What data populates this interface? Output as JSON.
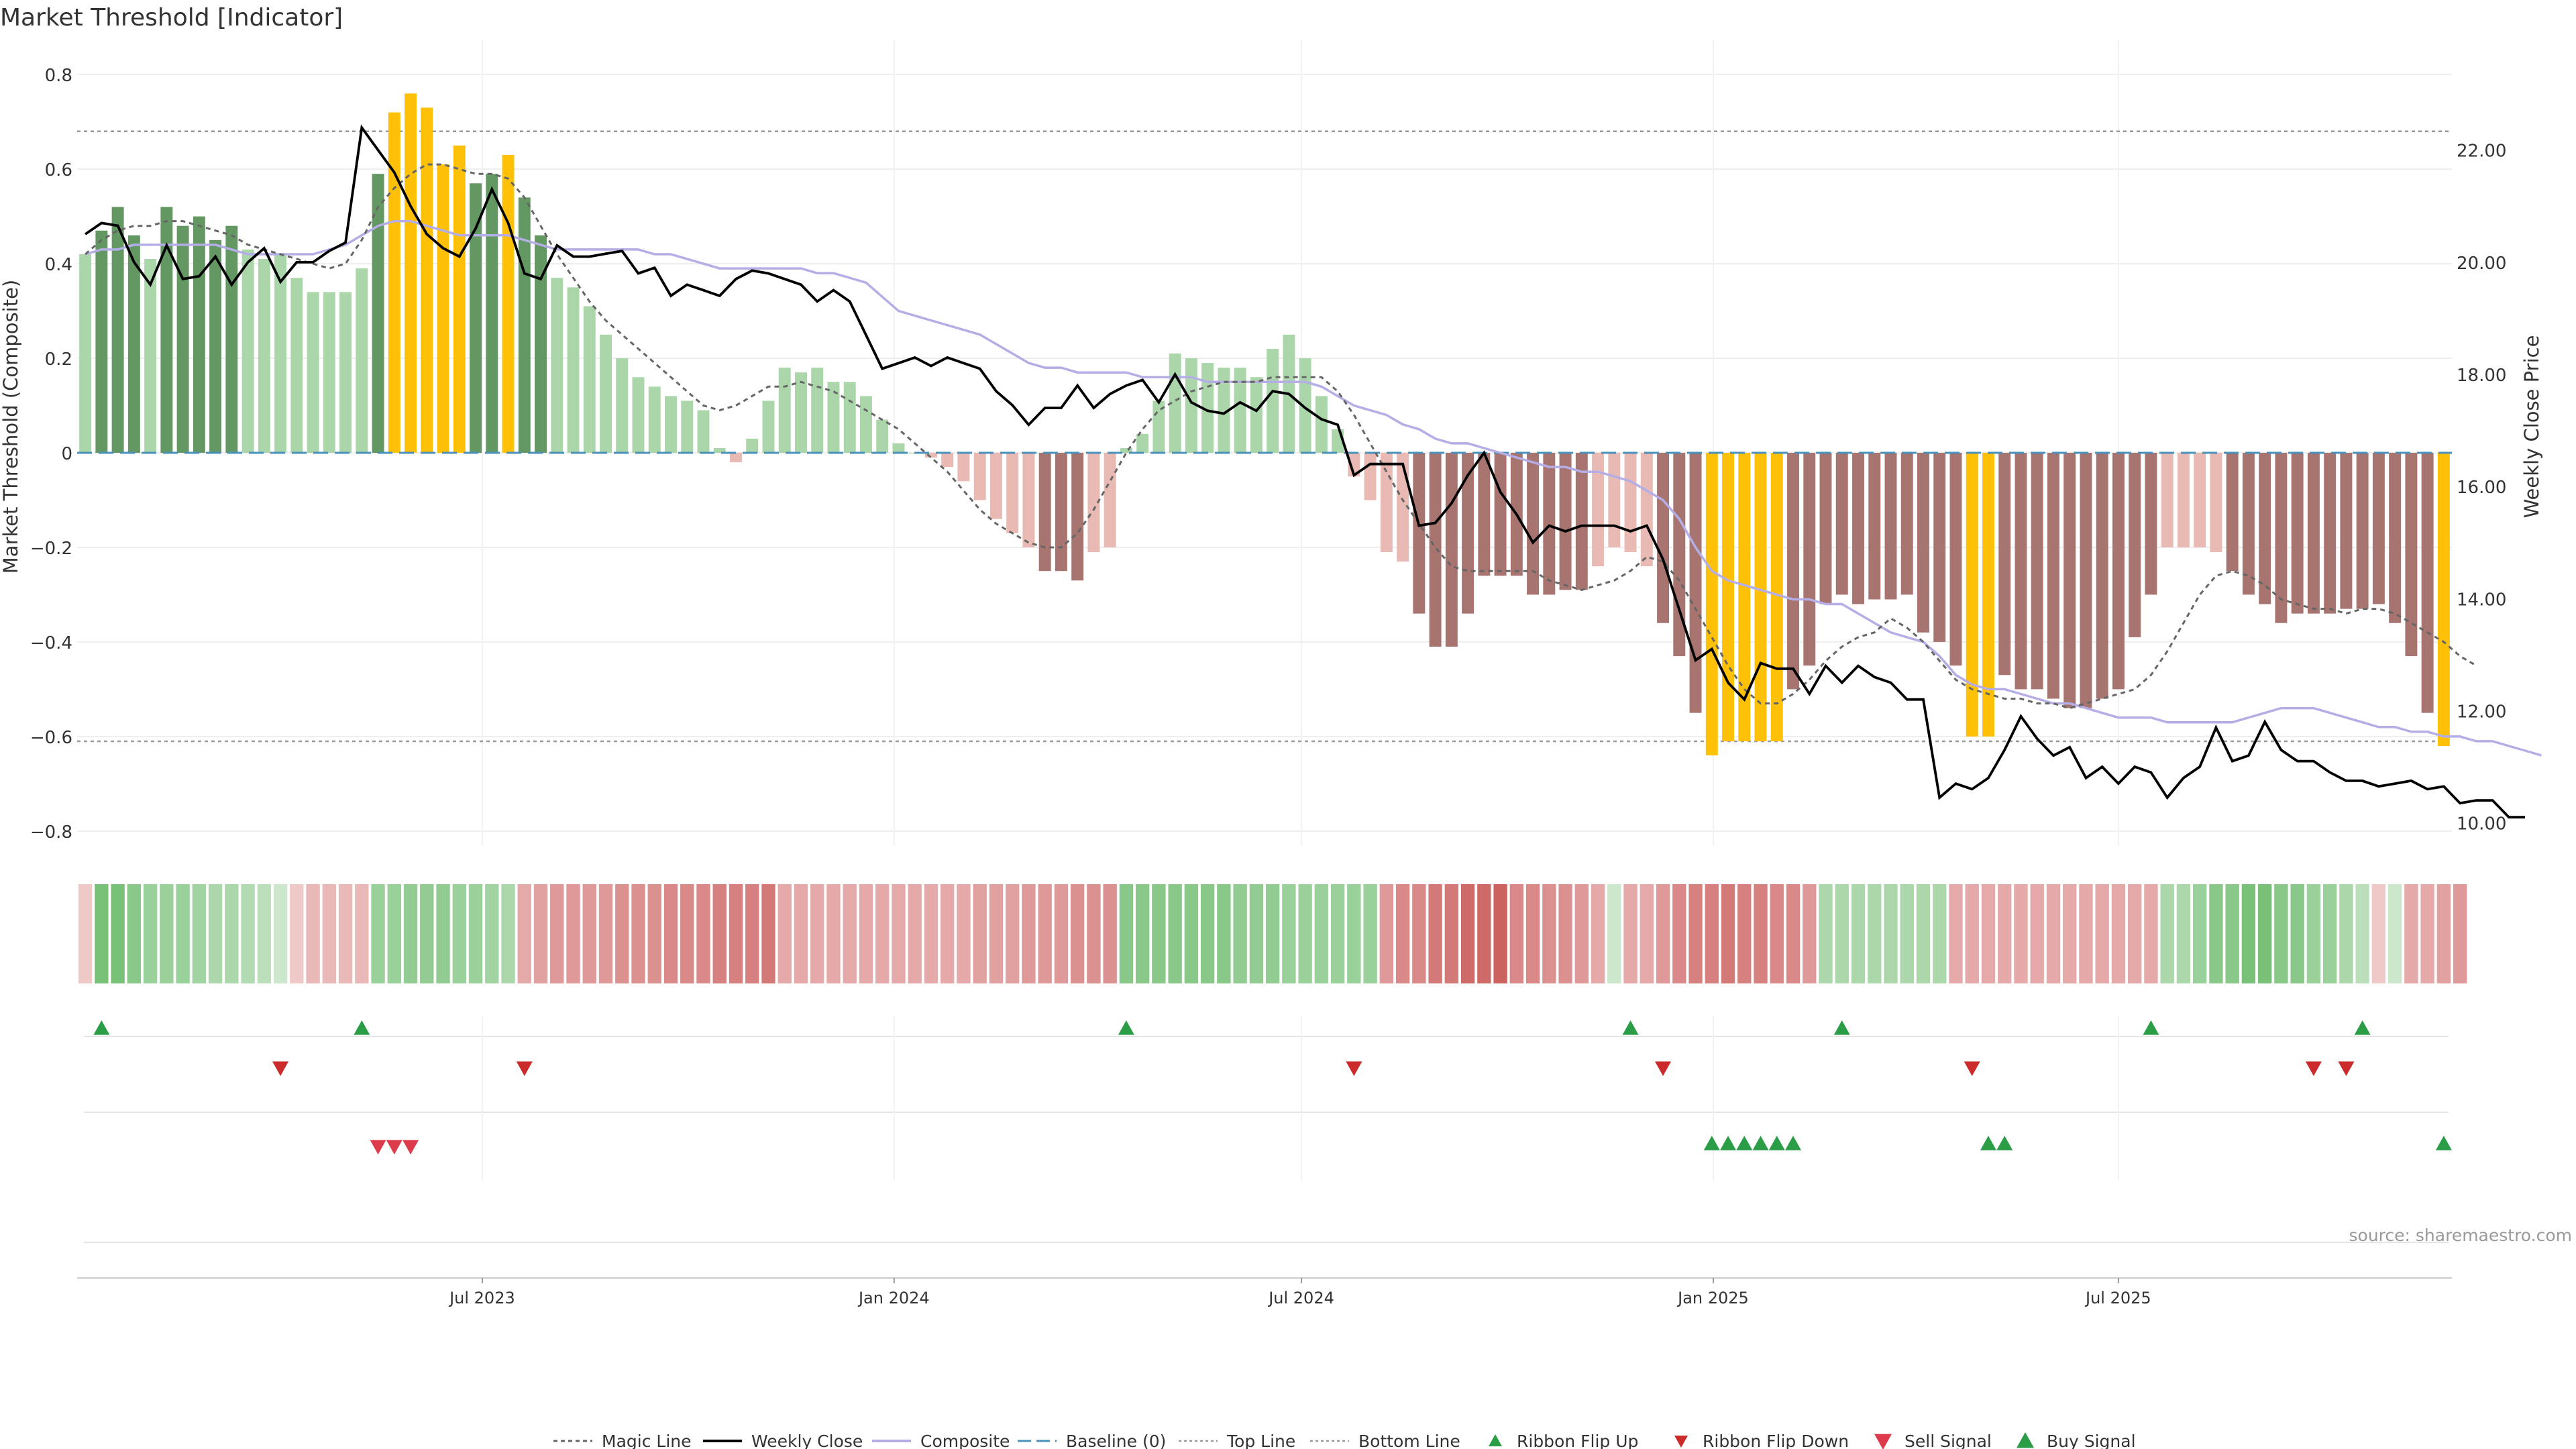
{
  "chart_data": {
    "type": "bar",
    "title": "Market Threshold [Indicator]",
    "source": "source: sharemaestro.com",
    "ylabel": "Market Threshold (Composite)",
    "y2label": "Weekly Close Price",
    "ylim": [
      -0.83,
      0.83
    ],
    "y2lim": [
      9.6,
      23.6
    ],
    "yticks": [
      "0.8",
      "0.6",
      "0.4",
      "0.2",
      "0",
      "−0.2",
      "−0.4",
      "−0.6",
      "−0.8"
    ],
    "yticks_values": [
      0.8,
      0.6,
      0.4,
      0.2,
      0,
      -0.2,
      -0.4,
      -0.6,
      -0.8
    ],
    "y2ticks": [
      "22.00",
      "20.00",
      "18.00",
      "16.00",
      "14.00",
      "12.00",
      "10.00"
    ],
    "y2ticks_values": [
      22,
      20,
      18,
      16,
      14,
      12,
      10
    ],
    "xlim": [
      "2023-01-01",
      "2025-11-27"
    ],
    "xticks": [
      {
        "date": "2023-07-01",
        "label": "Jul 2023"
      },
      {
        "date": "2024-01-01",
        "label": "Jan 2024"
      },
      {
        "date": "2024-07-01",
        "label": "Jul 2024"
      },
      {
        "date": "2025-01-01",
        "label": "Jan 2025"
      },
      {
        "date": "2025-07-01",
        "label": "Jul 2025"
      }
    ],
    "top_line": 0.68,
    "bottom_line": -0.61,
    "baseline": 0,
    "colors": {
      "strong_up": "#639863",
      "up": "#aad6aa",
      "down": "#e9b9b4",
      "strong_down": "#a87470",
      "extreme": "#ffc107",
      "weekly_close": "#000000",
      "composite": "#b5aee6",
      "magic_line": "#666666",
      "baseline": "#4a90b8",
      "ribbon_up": "#2a9d46",
      "ribbon_down": "#cc2b2b",
      "sell": "#dd3b4b",
      "buy": "#2a9d46"
    },
    "series": [
      {
        "name": "Weekly Close",
        "values": [
          20.5,
          20.7,
          20.65,
          20.0,
          19.6,
          20.3,
          19.7,
          19.75,
          20.1,
          19.6,
          20.0,
          20.25,
          19.65,
          20.0,
          20.0,
          20.2,
          20.35,
          22.4,
          22.0,
          21.6,
          21.0,
          20.5,
          20.25,
          20.1,
          20.6,
          21.3,
          20.7,
          19.8,
          19.7,
          20.3,
          20.1,
          20.1,
          20.15,
          20.2,
          19.8,
          19.9,
          19.4,
          19.6,
          19.5,
          19.4,
          19.7,
          19.85,
          19.8,
          19.7,
          19.6,
          19.3,
          19.5,
          19.3,
          18.7,
          18.1,
          18.2,
          18.3,
          18.15,
          18.3,
          18.2,
          18.1,
          17.7,
          17.45,
          17.1,
          17.4,
          17.4,
          17.8,
          17.4,
          17.65,
          17.8,
          17.9,
          17.5,
          18.0,
          17.5,
          17.35,
          17.3,
          17.5,
          17.35,
          17.7,
          17.65,
          17.4,
          17.2,
          17.1,
          16.2,
          16.4,
          16.4,
          16.4,
          15.3,
          15.35,
          15.7,
          16.2,
          16.6,
          15.9,
          15.5,
          15.0,
          15.3,
          15.2,
          15.3,
          15.3,
          15.3,
          15.2,
          15.3,
          14.7,
          13.8,
          12.9,
          13.1,
          12.5,
          12.2,
          12.85,
          12.75,
          12.75,
          12.3,
          12.8,
          12.5,
          12.8,
          12.6,
          12.5,
          12.2,
          12.2,
          10.45,
          10.7,
          10.6,
          10.8,
          11.3,
          11.9,
          11.5,
          11.2,
          11.35,
          10.8,
          11.0,
          10.7,
          11.0,
          10.9,
          10.45,
          10.8,
          11.0,
          11.7,
          11.1,
          11.2,
          11.8,
          11.3,
          11.1,
          11.1,
          10.9,
          10.75,
          10.75,
          10.65,
          10.7,
          10.75,
          10.6,
          10.65,
          10.35,
          10.4,
          10.4,
          10.1,
          10.1
        ],
        "y_axis": "right"
      },
      {
        "name": "Composite",
        "values": [
          0.42,
          0.43,
          0.43,
          0.44,
          0.44,
          0.44,
          0.44,
          0.44,
          0.44,
          0.43,
          0.42,
          0.42,
          0.42,
          0.42,
          0.42,
          0.43,
          0.44,
          0.46,
          0.48,
          0.49,
          0.49,
          0.48,
          0.47,
          0.46,
          0.46,
          0.46,
          0.46,
          0.45,
          0.44,
          0.43,
          0.43,
          0.43,
          0.43,
          0.43,
          0.43,
          0.42,
          0.42,
          0.41,
          0.4,
          0.39,
          0.39,
          0.39,
          0.39,
          0.39,
          0.39,
          0.38,
          0.38,
          0.37,
          0.36,
          0.33,
          0.3,
          0.29,
          0.28,
          0.27,
          0.26,
          0.25,
          0.23,
          0.21,
          0.19,
          0.18,
          0.18,
          0.17,
          0.17,
          0.17,
          0.17,
          0.16,
          0.16,
          0.16,
          0.16,
          0.15,
          0.15,
          0.15,
          0.15,
          0.15,
          0.15,
          0.15,
          0.14,
          0.12,
          0.1,
          0.09,
          0.08,
          0.06,
          0.05,
          0.03,
          0.02,
          0.02,
          0.01,
          0.0,
          -0.01,
          -0.02,
          -0.03,
          -0.03,
          -0.04,
          -0.04,
          -0.05,
          -0.06,
          -0.08,
          -0.1,
          -0.14,
          -0.2,
          -0.25,
          -0.27,
          -0.28,
          -0.29,
          -0.3,
          -0.31,
          -0.31,
          -0.32,
          -0.32,
          -0.34,
          -0.36,
          -0.38,
          -0.39,
          -0.4,
          -0.43,
          -0.47,
          -0.49,
          -0.5,
          -0.5,
          -0.51,
          -0.52,
          -0.53,
          -0.53,
          -0.54,
          -0.55,
          -0.56,
          -0.56,
          -0.56,
          -0.57,
          -0.57,
          -0.57,
          -0.57,
          -0.57,
          -0.56,
          -0.55,
          -0.54,
          -0.54,
          -0.54,
          -0.55,
          -0.56,
          -0.57,
          -0.58,
          -0.58,
          -0.59,
          -0.59,
          -0.6,
          -0.6,
          -0.61,
          -0.61,
          -0.62,
          -0.63,
          -0.64
        ]
      },
      {
        "name": "Magic Line",
        "values": [
          0.42,
          0.45,
          0.47,
          0.48,
          0.48,
          0.49,
          0.49,
          0.48,
          0.47,
          0.46,
          0.44,
          0.43,
          0.42,
          0.41,
          0.4,
          0.39,
          0.4,
          0.45,
          0.52,
          0.56,
          0.59,
          0.61,
          0.61,
          0.6,
          0.59,
          0.59,
          0.58,
          0.54,
          0.48,
          0.42,
          0.37,
          0.32,
          0.28,
          0.25,
          0.22,
          0.19,
          0.16,
          0.13,
          0.1,
          0.09,
          0.1,
          0.12,
          0.14,
          0.14,
          0.15,
          0.14,
          0.13,
          0.11,
          0.09,
          0.07,
          0.05,
          0.02,
          -0.01,
          -0.04,
          -0.08,
          -0.12,
          -0.15,
          -0.17,
          -0.19,
          -0.2,
          -0.2,
          -0.17,
          -0.12,
          -0.06,
          0.0,
          0.05,
          0.09,
          0.11,
          0.13,
          0.14,
          0.15,
          0.15,
          0.15,
          0.16,
          0.16,
          0.16,
          0.16,
          0.13,
          0.08,
          0.02,
          -0.04,
          -0.1,
          -0.15,
          -0.2,
          -0.24,
          -0.25,
          -0.25,
          -0.25,
          -0.25,
          -0.25,
          -0.27,
          -0.28,
          -0.29,
          -0.28,
          -0.27,
          -0.25,
          -0.22,
          -0.23,
          -0.27,
          -0.33,
          -0.39,
          -0.45,
          -0.5,
          -0.53,
          -0.53,
          -0.51,
          -0.48,
          -0.44,
          -0.41,
          -0.39,
          -0.38,
          -0.35,
          -0.37,
          -0.4,
          -0.44,
          -0.48,
          -0.5,
          -0.51,
          -0.52,
          -0.52,
          -0.53,
          -0.53,
          -0.54,
          -0.53,
          -0.52,
          -0.51,
          -0.5,
          -0.47,
          -0.42,
          -0.36,
          -0.3,
          -0.26,
          -0.25,
          -0.26,
          -0.28,
          -0.31,
          -0.32,
          -0.33,
          -0.33,
          -0.34,
          -0.33,
          -0.33,
          -0.34,
          -0.36,
          -0.38,
          -0.4,
          -0.43,
          -0.45
        ]
      },
      {
        "name": "Baseline (0)",
        "values": []
      },
      {
        "name": "Top Line",
        "values": []
      },
      {
        "name": "Bottom Line",
        "values": []
      },
      {
        "name": "Ribbon Flip Up",
        "values": []
      },
      {
        "name": "Ribbon Flip Down",
        "values": []
      },
      {
        "name": "Sell Signal",
        "values": []
      },
      {
        "name": "Buy Signal",
        "values": []
      }
    ],
    "bars": [
      0.42,
      0.47,
      0.52,
      0.46,
      0.41,
      0.52,
      0.48,
      0.5,
      0.45,
      0.48,
      0.43,
      0.41,
      0.42,
      0.37,
      0.34,
      0.34,
      0.34,
      0.39,
      0.59,
      0.72,
      0.76,
      0.73,
      0.61,
      0.65,
      0.57,
      0.59,
      0.63,
      0.54,
      0.46,
      0.37,
      0.35,
      0.31,
      0.25,
      0.2,
      0.16,
      0.14,
      0.12,
      0.11,
      0.09,
      0.01,
      -0.02,
      0.03,
      0.11,
      0.18,
      0.17,
      0.18,
      0.15,
      0.15,
      0.12,
      0.07,
      0.02,
      0.0,
      -0.01,
      -0.03,
      -0.06,
      -0.1,
      -0.14,
      -0.17,
      -0.2,
      -0.25,
      -0.25,
      -0.27,
      -0.21,
      -0.2,
      0.01,
      0.04,
      0.11,
      0.21,
      0.2,
      0.19,
      0.18,
      0.18,
      0.16,
      0.22,
      0.25,
      0.2,
      0.12,
      0.05,
      -0.05,
      -0.1,
      -0.21,
      -0.23,
      -0.34,
      -0.41,
      -0.41,
      -0.34,
      -0.26,
      -0.26,
      -0.26,
      -0.3,
      -0.3,
      -0.29,
      -0.29,
      -0.24,
      -0.2,
      -0.21,
      -0.24,
      -0.36,
      -0.43,
      -0.55,
      -0.64,
      -0.61,
      -0.61,
      -0.61,
      -0.61,
      -0.5,
      -0.45,
      -0.32,
      -0.3,
      -0.32,
      -0.31,
      -0.31,
      -0.3,
      -0.38,
      -0.4,
      -0.45,
      -0.6,
      -0.6,
      -0.47,
      -0.5,
      -0.5,
      -0.52,
      -0.54,
      -0.54,
      -0.52,
      -0.5,
      -0.39,
      -0.3,
      -0.2,
      -0.2,
      -0.2,
      -0.21,
      -0.25,
      -0.3,
      -0.32,
      -0.36,
      -0.34,
      -0.34,
      -0.34,
      -0.33,
      -0.33,
      -0.32,
      -0.36,
      -0.43,
      -0.55,
      -0.62
    ],
    "ribbon": [
      -0.1,
      0.6,
      0.6,
      0.5,
      0.4,
      0.4,
      0.4,
      0.35,
      0.3,
      0.3,
      0.25,
      0.2,
      0.1,
      -0.1,
      -0.2,
      -0.2,
      -0.2,
      -0.2,
      0.4,
      0.4,
      0.45,
      0.45,
      0.45,
      0.4,
      0.4,
      0.35,
      0.3,
      -0.3,
      -0.35,
      -0.4,
      -0.4,
      -0.4,
      -0.4,
      -0.45,
      -0.45,
      -0.45,
      -0.5,
      -0.5,
      -0.5,
      -0.55,
      -0.55,
      -0.55,
      -0.6,
      -0.3,
      -0.3,
      -0.3,
      -0.3,
      -0.3,
      -0.3,
      -0.3,
      -0.3,
      -0.3,
      -0.3,
      -0.3,
      -0.3,
      -0.35,
      -0.35,
      -0.35,
      -0.4,
      -0.4,
      -0.4,
      -0.45,
      -0.45,
      -0.45,
      0.5,
      0.5,
      0.5,
      0.5,
      0.5,
      0.5,
      0.5,
      0.45,
      0.45,
      0.45,
      0.4,
      0.4,
      0.4,
      0.4,
      0.4,
      0.4,
      -0.4,
      -0.5,
      -0.5,
      -0.6,
      -0.6,
      -0.7,
      -0.7,
      -0.75,
      -0.5,
      -0.5,
      -0.45,
      -0.45,
      -0.4,
      -0.3,
      0.1,
      -0.3,
      -0.3,
      -0.4,
      -0.5,
      -0.55,
      -0.55,
      -0.6,
      -0.55,
      -0.55,
      -0.5,
      -0.5,
      -0.4,
      0.3,
      0.3,
      0.3,
      0.3,
      0.3,
      0.3,
      0.3,
      0.3,
      -0.3,
      -0.3,
      -0.3,
      -0.3,
      -0.3,
      -0.3,
      -0.3,
      -0.3,
      -0.3,
      -0.3,
      -0.3,
      -0.3,
      -0.3,
      0.3,
      0.3,
      0.4,
      0.5,
      0.5,
      0.6,
      0.6,
      0.5,
      0.5,
      0.4,
      0.4,
      0.3,
      0.2,
      -0.1,
      0.1,
      -0.3,
      -0.3,
      -0.35,
      -0.4
    ],
    "ribbon_flip_up": [
      1,
      17,
      64,
      95,
      108,
      127,
      140
    ],
    "ribbon_flip_down": [
      12,
      27,
      78,
      97,
      116,
      137,
      139
    ],
    "sell_signal": [
      18,
      19,
      20
    ],
    "buy_signal": [
      100,
      101,
      102,
      103,
      104,
      105,
      117,
      118,
      145
    ]
  },
  "legend": [
    {
      "name": "Magic Line"
    },
    {
      "name": "Weekly Close"
    },
    {
      "name": "Composite"
    },
    {
      "name": "Baseline (0)"
    },
    {
      "name": "Top Line"
    },
    {
      "name": "Bottom Line"
    },
    {
      "name": "Ribbon Flip Up"
    },
    {
      "name": "Ribbon Flip Down"
    },
    {
      "name": "Sell Signal"
    },
    {
      "name": "Buy Signal"
    }
  ]
}
